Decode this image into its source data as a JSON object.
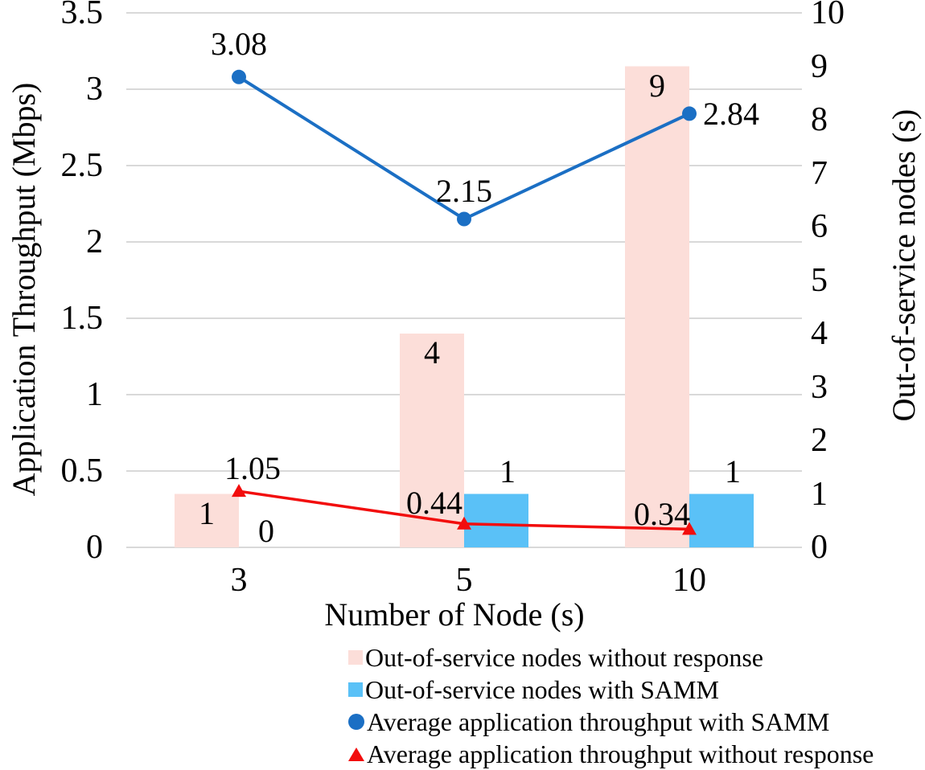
{
  "chart_data": {
    "type": "combo",
    "categories": [
      "3",
      "5",
      "10"
    ],
    "x_title": "Number of Node (s)",
    "grid_color": "#d9d9d9",
    "background_color": "#ffffff",
    "text_color": "#000000",
    "left_axis": {
      "title": "Application Throughput (Mbps)",
      "min": 0,
      "max": 3.5,
      "ticks": [
        "3.5",
        "3",
        "2.5",
        "2",
        "1.5",
        "1",
        "0.5",
        "0"
      ]
    },
    "right_axis": {
      "title": "Out-of-service nodes (s)",
      "min": 0,
      "max": 10,
      "ticks": [
        "10",
        "9",
        "8",
        "7",
        "6",
        "5",
        "4",
        "3",
        "2",
        "1",
        "0"
      ]
    },
    "series": [
      {
        "name": "Out-of-service nodes without response",
        "type": "bar",
        "plot_axis": "right",
        "marker": "square",
        "color": "#fcded9",
        "values": [
          1,
          4,
          9
        ],
        "labels": [
          "1",
          "4",
          "9"
        ]
      },
      {
        "name": "Out-of-service nodes with SAMM",
        "type": "bar",
        "plot_axis": "right",
        "marker": "square",
        "color": "#5ac1f7",
        "values": [
          0,
          1,
          1
        ],
        "labels": [
          "0",
          "1",
          "1"
        ]
      },
      {
        "name": "Average application throughput with SAMM",
        "type": "line",
        "plot_axis": "left",
        "marker": "circle",
        "color": "#1b6fc4",
        "values": [
          3.08,
          2.15,
          2.84
        ],
        "labels": [
          "3.08",
          "2.15",
          "2.84"
        ]
      },
      {
        "name": "Average application throughput without response",
        "type": "line",
        "plot_axis": "right",
        "marker": "triangle",
        "color": "#f20d0d",
        "values": [
          1.05,
          0.44,
          0.34
        ],
        "labels": [
          "1.05",
          "0.44",
          "0.34"
        ]
      }
    ],
    "legend_position": "bottom-left-aligned"
  }
}
